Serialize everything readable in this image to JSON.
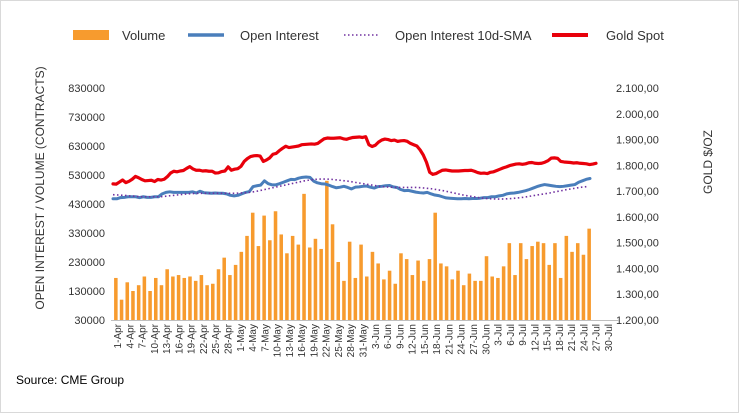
{
  "source": "Source: CME Group",
  "chart_data": {
    "type": "bar",
    "title": "",
    "grid": false,
    "legend_position": "top",
    "ylabel_left": "OPEN INTEREST / VOLUME (CONTRACTS)",
    "ylabel_right": "GOLD $/OZ",
    "ylim_left": [
      30000,
      830000
    ],
    "ylim_right": [
      1200,
      2100
    ],
    "left_ticks": [
      "30000",
      "130000",
      "230000",
      "330000",
      "430000",
      "530000",
      "630000",
      "730000",
      "830000"
    ],
    "right_ticks": [
      "1.200,00",
      "1.300,00",
      "1.400,00",
      "1.500,00",
      "1.600,00",
      "1.700,00",
      "1.800,00",
      "1.900,00",
      "2.000,00",
      "2.100,00"
    ],
    "x_tick_labels": [
      "1-Apr",
      "4-Apr",
      "7-Apr",
      "10-Apr",
      "13-Apr",
      "16-Apr",
      "19-Apr",
      "22-Apr",
      "25-Apr",
      "28-Apr",
      "1-May",
      "4-May",
      "7-May",
      "10-May",
      "13-May",
      "16-May",
      "19-May",
      "22-May",
      "25-May",
      "28-May",
      "31-May",
      "3-Jun",
      "6-Jun",
      "9-Jun",
      "12-Jun",
      "15-Jun",
      "18-Jun",
      "21-Jun",
      "24-Jun",
      "27-Jun",
      "30-Jun",
      "3-Jul",
      "6-Jul",
      "9-Jul",
      "12-Jul",
      "15-Jul",
      "18-Jul",
      "21-Jul",
      "24-Jul",
      "27-Jul",
      "30-Jul"
    ],
    "colors": {
      "volume": "#F79B2E",
      "open_interest": "#4A7EBB",
      "sma": "#7030A0",
      "gold": "#E8000B"
    },
    "series": [
      {
        "name": "Volume",
        "type": "bar",
        "axis": "left",
        "values": [
          175000,
          100000,
          160000,
          130000,
          150000,
          180000,
          130000,
          175000,
          150000,
          205000,
          180000,
          185000,
          175000,
          180000,
          165000,
          185000,
          150000,
          155000,
          205000,
          245000,
          185000,
          220000,
          265000,
          320000,
          400000,
          285000,
          390000,
          305000,
          405000,
          325000,
          260000,
          320000,
          290000,
          465000,
          280000,
          310000,
          275000,
          510000,
          360000,
          230000,
          165000,
          300000,
          175000,
          290000,
          180000,
          265000,
          225000,
          170000,
          200000,
          155000,
          260000,
          240000,
          185000,
          235000,
          165000,
          240000,
          400000,
          225000,
          215000,
          170000,
          200000,
          150000,
          190000,
          165000,
          165000,
          250000,
          180000,
          175000,
          215000,
          295000,
          185000,
          295000,
          240000,
          285000,
          300000,
          295000,
          220000,
          295000,
          175000,
          320000,
          265000,
          295000,
          255000,
          345000
        ]
      },
      {
        "name": "Open Interest",
        "type": "line",
        "axis": "left",
        "values": [
          448000,
          448000,
          452000,
          453000,
          455000,
          455000,
          455000,
          452000,
          455000,
          453000,
          453000,
          455000,
          455000,
          465000,
          470000,
          472000,
          470000,
          470000,
          470000,
          470000,
          470000,
          472000,
          468000,
          474000,
          469000,
          468000,
          467000,
          468000,
          467000,
          467000,
          465000,
          460000,
          458000,
          460000,
          465000,
          470000,
          473000,
          490000,
          493000,
          495000,
          510000,
          500000,
          496000,
          496000,
          500000,
          505000,
          510000,
          515000,
          514000,
          519000,
          522000,
          523000,
          522000,
          509000,
          503000,
          500000,
          499000,
          495000,
          490000,
          486000,
          488000,
          491000,
          487000,
          482000,
          488000,
          489000,
          491000,
          492000,
          488000,
          485000,
          490000,
          491000,
          493000,
          494000,
          489000,
          487000,
          480000,
          476000,
          477000,
          474000,
          471000,
          469000,
          468000,
          470000,
          465000,
          461000,
          459000,
          455000,
          451000,
          450000,
          449000,
          448000,
          448000,
          449000,
          448000,
          449000,
          449000,
          450000,
          452000,
          452000,
          455000,
          455000,
          458000,
          460000,
          465000,
          467000,
          468000,
          470000,
          473000,
          476000,
          480000,
          485000,
          490000,
          494000,
          497000,
          495000,
          493000,
          491000,
          490000,
          491000,
          493000,
          495000,
          497000,
          505000,
          510000,
          515000,
          518000
        ]
      },
      {
        "name": "Open Interest 10d-SMA",
        "type": "line",
        "axis": "left",
        "dashed": true,
        "values": [
          462000,
          461000,
          460000,
          458000,
          457000,
          455000,
          455000,
          455000,
          455000,
          455000,
          457000,
          459000,
          461000,
          463000,
          465000,
          466000,
          467000,
          467000,
          467000,
          467000,
          467000,
          467000,
          467000,
          467000,
          468000,
          469000,
          471000,
          474000,
          478000,
          482000,
          486000,
          490000,
          494000,
          498000,
          502000,
          506000,
          510000,
          513000,
          515000,
          516000,
          516000,
          515000,
          513000,
          511000,
          509000,
          506000,
          503000,
          500000,
          497000,
          494000,
          491000,
          489000,
          488000,
          487000,
          487000,
          487000,
          487000,
          487000,
          486000,
          484000,
          482000,
          479000,
          476000,
          472000,
          468000,
          464000,
          460000,
          457000,
          454000,
          451000,
          449000,
          448000,
          447000,
          447000,
          448000,
          449000,
          451000,
          453000,
          456000,
          459000,
          462000,
          465000,
          468000,
          472000,
          475000,
          479000,
          482000,
          485000,
          488000,
          490000
        ]
      },
      {
        "name": "Gold Spot",
        "type": "line",
        "axis": "right",
        "values": [
          1728,
          1727,
          1735,
          1743,
          1733,
          1738,
          1746,
          1757,
          1752,
          1745,
          1740,
          1741,
          1742,
          1737,
          1745,
          1743,
          1746,
          1756,
          1770,
          1777,
          1775,
          1778,
          1780,
          1788,
          1795,
          1786,
          1781,
          1781,
          1778,
          1779,
          1777,
          1777,
          1770,
          1771,
          1776,
          1778,
          1794,
          1781,
          1785,
          1787,
          1796,
          1815,
          1826,
          1834,
          1837,
          1838,
          1836,
          1815,
          1821,
          1829,
          1843,
          1846,
          1857,
          1866,
          1874,
          1869,
          1871,
          1873,
          1875,
          1880,
          1881,
          1882,
          1883,
          1882,
          1885,
          1894,
          1903,
          1906,
          1905,
          1905,
          1906,
          1907,
          1903,
          1901,
          1905,
          1908,
          1909,
          1910,
          1908,
          1911,
          1880,
          1873,
          1878,
          1890,
          1898,
          1902,
          1900,
          1896,
          1898,
          1893,
          1895,
          1896,
          1893,
          1885,
          1880,
          1875,
          1860,
          1840,
          1812,
          1773,
          1765,
          1768,
          1775,
          1781,
          1782,
          1780,
          1778,
          1778,
          1778,
          1779,
          1780,
          1780,
          1781,
          1777,
          1772,
          1769,
          1770,
          1768,
          1773,
          1775,
          1780,
          1785,
          1790,
          1794,
          1799,
          1802,
          1805,
          1806,
          1804,
          1806,
          1810,
          1811,
          1808,
          1807,
          1808,
          1812,
          1818,
          1828,
          1829,
          1827,
          1815,
          1813,
          1812,
          1811,
          1809,
          1810,
          1808,
          1807,
          1806,
          1803,
          1805,
          1808
        ]
      }
    ]
  }
}
